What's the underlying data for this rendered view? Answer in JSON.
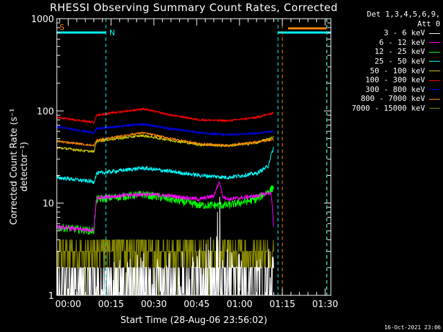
{
  "chart_data": {
    "type": "line",
    "title": "RHESSI Observing Summary Count Rates, Corrected",
    "xlabel": "Start Time (28-Aug-06 23:56:02)",
    "ylabel": "Corrected Count Rate (s⁻¹ detector⁻¹)",
    "yscale": "log",
    "ylim": [
      1,
      1000
    ],
    "y_ticks": [
      1,
      10,
      100,
      1000
    ],
    "y_tick_labels": [
      "1",
      "10",
      "100",
      "1000"
    ],
    "xlim": [
      0,
      96
    ],
    "x_ticks": [
      4,
      19,
      34,
      49,
      64,
      79,
      94
    ],
    "x_tick_labels": [
      "00:00",
      "00:15",
      "00:30",
      "00:45",
      "01:00",
      "01:15",
      "01:30"
    ],
    "legend_header": [
      "Det 1,3,4,5,6,9,",
      "Att 0"
    ],
    "legend_position": "right",
    "flags": [
      {
        "label": "S",
        "color": "#ff8800"
      },
      {
        "label": "N",
        "color": "#00ffff"
      }
    ],
    "series": [
      {
        "name": "3 - 6 keV",
        "color": "#ffffff",
        "noise": 0.9,
        "x": [
          0,
          18,
          19,
          30,
          40,
          50,
          55,
          57,
          58,
          60,
          70,
          76
        ],
        "y": [
          1,
          1,
          1.3,
          1.6,
          1.5,
          1.7,
          2.5,
          7.5,
          2.5,
          1.7,
          1.5,
          1.8
        ]
      },
      {
        "name": "6 - 12 keV",
        "color": "#ff00ff",
        "noise": 0.05,
        "x": [
          0,
          13,
          14,
          30,
          40,
          50,
          55,
          57,
          58,
          60,
          70,
          75,
          76
        ],
        "y": [
          5.5,
          5,
          11.5,
          12.5,
          12,
          11,
          12,
          17,
          12,
          11,
          12,
          13,
          5
        ]
      },
      {
        "name": "12 - 25 keV",
        "color": "#00ff00",
        "noise": 0.1,
        "x": [
          0,
          13,
          14,
          30,
          40,
          50,
          60,
          70,
          75,
          76
        ],
        "y": [
          5.5,
          5,
          11,
          12.5,
          11,
          9.5,
          9.5,
          11,
          14,
          15
        ]
      },
      {
        "name": "25 - 50 keV",
        "color": "#00ffff",
        "noise": 0.05,
        "x": [
          0,
          13,
          14,
          30,
          40,
          50,
          60,
          70,
          74,
          76
        ],
        "y": [
          19,
          17,
          21,
          24,
          22,
          20,
          19,
          21,
          25,
          40
        ]
      },
      {
        "name": "50 - 100 keV",
        "color": "#cccc00",
        "noise": 0.03,
        "x": [
          0,
          13,
          14,
          30,
          40,
          50,
          60,
          70,
          76
        ],
        "y": [
          40,
          36,
          47,
          54,
          48,
          43,
          42,
          45,
          52
        ]
      },
      {
        "name": "100 - 300 keV",
        "color": "#ff0000",
        "noise": 0.025,
        "x": [
          0,
          13,
          14,
          30,
          40,
          50,
          60,
          70,
          76
        ],
        "y": [
          85,
          75,
          90,
          105,
          90,
          80,
          78,
          85,
          95
        ]
      },
      {
        "name": "300 - 800 keV",
        "color": "#0000ff",
        "noise": 0.025,
        "x": [
          0,
          13,
          14,
          30,
          40,
          50,
          60,
          70,
          76
        ],
        "y": [
          67,
          58,
          64,
          72,
          64,
          58,
          55,
          57,
          60
        ]
      },
      {
        "name": "800 - 7000 keV",
        "color": "#ff8800",
        "noise": 0.025,
        "x": [
          0,
          13,
          14,
          30,
          40,
          50,
          60,
          70,
          76
        ],
        "y": [
          47,
          42,
          48,
          58,
          50,
          44,
          42,
          46,
          49
        ]
      },
      {
        "name": "7000 - 15000 keV",
        "color": "#888800",
        "noise": 0.0,
        "x": [
          0,
          13,
          14,
          30,
          40,
          50,
          60,
          70,
          76
        ],
        "y": [
          2.5,
          2.5,
          3,
          3.5,
          3,
          2.5,
          2.2,
          2.5,
          3
        ]
      }
    ],
    "annotation": "16-Oct-2021 23:06"
  }
}
